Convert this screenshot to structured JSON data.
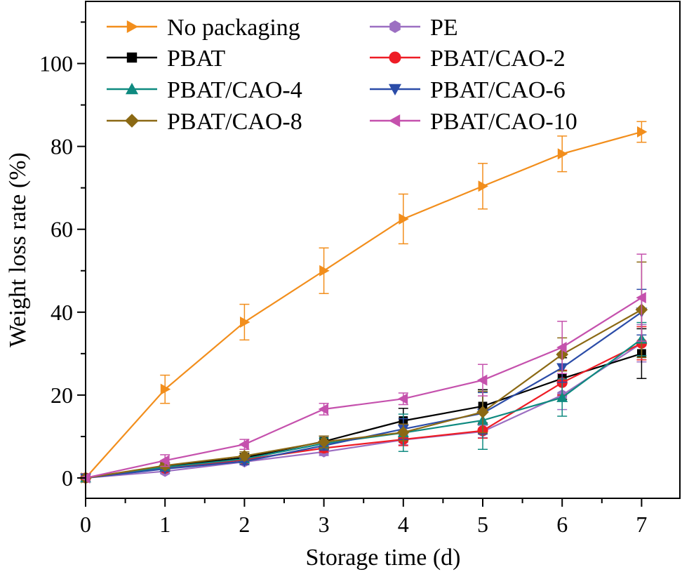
{
  "chart_data": {
    "type": "line",
    "title": "",
    "xlabel": "Storage time (d)",
    "ylabel": "Weight loss rate (%)",
    "xlim": [
      0,
      7.5
    ],
    "ylim": [
      -5,
      115
    ],
    "xticks": [
      "0",
      "1",
      "2",
      "3",
      "4",
      "5",
      "6",
      "7"
    ],
    "yticks": [
      "0",
      "20",
      "40",
      "60",
      "80",
      "100"
    ],
    "legend_position": "top-left",
    "x": [
      0,
      1,
      2,
      3,
      4,
      5,
      6,
      7
    ],
    "series": [
      {
        "name": "No packaging",
        "color": "#F28E1C",
        "marker": "triangle-right",
        "values": [
          0,
          21.4,
          37.6,
          50.0,
          62.5,
          70.4,
          78.2,
          83.5
        ],
        "errors": [
          0,
          3.4,
          4.3,
          5.5,
          6.0,
          5.5,
          4.3,
          2.5
        ]
      },
      {
        "name": "PE",
        "color": "#9C6FC2",
        "marker": "hexagon",
        "values": [
          0,
          1.6,
          3.9,
          6.3,
          9.2,
          11.2,
          20.0,
          32.5
        ],
        "errors": [
          0,
          0.5,
          0.7,
          0.9,
          1.2,
          1.5,
          3.5,
          4.5
        ]
      },
      {
        "name": "PBAT",
        "color": "#000000",
        "marker": "square",
        "values": [
          0,
          2.8,
          4.9,
          8.8,
          13.8,
          17.3,
          24.0,
          30.0
        ],
        "errors": [
          0,
          0.8,
          1.0,
          1.3,
          3.0,
          4.0,
          5.0,
          6.0
        ]
      },
      {
        "name": "PBAT/CAO-2",
        "color": "#EE1C25",
        "marker": "circle",
        "values": [
          0,
          2.3,
          4.4,
          7.2,
          9.3,
          11.4,
          23.0,
          32.5
        ],
        "errors": [
          0,
          0.6,
          0.8,
          1.0,
          1.5,
          1.8,
          3.0,
          4.0
        ]
      },
      {
        "name": "PBAT/CAO-4",
        "color": "#0F8A80",
        "marker": "triangle-up",
        "values": [
          0,
          2.6,
          4.6,
          8.3,
          10.9,
          13.9,
          19.4,
          33.5
        ],
        "errors": [
          0,
          0.6,
          0.8,
          1.3,
          4.5,
          7.0,
          4.5,
          4.0
        ]
      },
      {
        "name": "PBAT/CAO-6",
        "color": "#2B4CA8",
        "marker": "triangle-down",
        "values": [
          0,
          2.2,
          4.0,
          7.8,
          11.8,
          15.6,
          26.6,
          40.0
        ],
        "errors": [
          0,
          0.6,
          0.8,
          1.1,
          2.5,
          5.0,
          3.5,
          5.5
        ]
      },
      {
        "name": "PBAT/CAO-8",
        "color": "#8B6914",
        "marker": "diamond",
        "values": [
          0,
          3.0,
          5.3,
          8.7,
          11.0,
          15.9,
          29.8,
          40.6
        ],
        "errors": [
          0,
          0.7,
          1.0,
          1.4,
          2.0,
          5.0,
          4.0,
          11.5
        ]
      },
      {
        "name": "PBAT/CAO-10",
        "color": "#C551AD",
        "marker": "triangle-left",
        "values": [
          0,
          4.2,
          8.1,
          16.6,
          19.1,
          23.6,
          31.5,
          43.5
        ],
        "errors": [
          0,
          1.4,
          1.2,
          1.4,
          1.4,
          3.8,
          6.3,
          10.5
        ]
      }
    ]
  }
}
